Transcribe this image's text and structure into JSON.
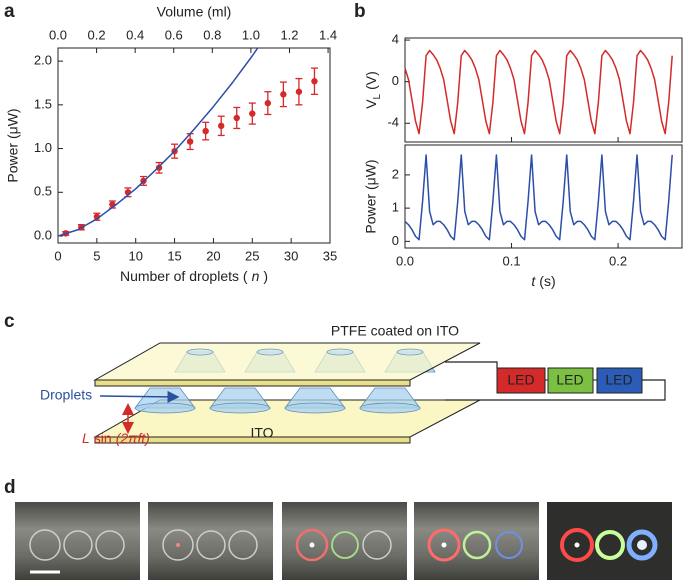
{
  "panel_labels": [
    "a",
    "b",
    "c",
    "d"
  ],
  "chart_data": [
    {
      "type": "scatter",
      "xlabel": [
        "Number of droplets (",
        "n",
        ")"
      ],
      "x2label": "Volume (ml)",
      "ylabel": "Power (μW)",
      "xlim": [
        0,
        35
      ],
      "xticks": [
        0,
        5,
        10,
        15,
        20,
        25,
        30,
        35
      ],
      "x2lim": [
        0,
        1.41
      ],
      "x2ticks": [
        {
          "value": 0,
          "label": "0.0"
        },
        0.2,
        0.4,
        0.6,
        0.8,
        {
          "value": 1,
          "label": "1.0"
        },
        1.2,
        1.4
      ],
      "ylim": [
        -0.08,
        2.15
      ],
      "yticks": [
        {
          "value": 0,
          "label": "0.0"
        },
        0.5,
        {
          "value": 1,
          "label": "1.0"
        },
        1.5,
        {
          "value": 2,
          "label": "2.0"
        }
      ],
      "series": [
        {
          "color": "#d42a2a",
          "x": [
            1,
            3,
            5,
            7,
            9,
            11,
            13,
            15,
            17,
            19,
            21,
            23,
            25,
            27,
            29,
            31,
            33
          ],
          "values": [
            0.03,
            0.1,
            0.22,
            0.36,
            0.5,
            0.63,
            0.78,
            0.97,
            1.08,
            1.2,
            1.26,
            1.35,
            1.4,
            1.52,
            1.62,
            1.65,
            1.77
          ],
          "errors": [
            0.02,
            0.03,
            0.04,
            0.04,
            0.05,
            0.05,
            0.06,
            0.08,
            0.09,
            0.1,
            0.11,
            0.12,
            0.12,
            0.13,
            0.14,
            0.15,
            0.15
          ]
        },
        {
          "type": "line",
          "color": "#2b4fa8",
          "x": [
            0,
            2.5,
            5,
            7.5,
            10,
            12.5,
            15,
            17.5,
            20,
            22.5,
            25,
            26
          ],
          "values": [
            0,
            0.07,
            0.195,
            0.36,
            0.54,
            0.75,
            0.97,
            1.22,
            1.48,
            1.76,
            2.06,
            2.19
          ]
        }
      ]
    },
    {
      "type": "line",
      "ylabel": [
        "V",
        "L",
        "(V)"
      ],
      "xlim": [
        0,
        0.26
      ],
      "xticks": [
        {
          "value": 0,
          "label": "0.0"
        },
        0.1,
        0.2
      ],
      "ylim": [
        -5.8,
        4.2
      ],
      "yticks": [
        -4,
        0,
        4
      ],
      "series": [
        {
          "color": "#d42a2a",
          "x": [
            0,
            0.0033,
            0.0066,
            0.0099,
            0.0132,
            0.0165,
            0.0198,
            0.0231,
            0.0264,
            0.0297,
            0.033,
            0.0363,
            0.0396,
            0.0429,
            0.0462,
            0.0495,
            0.0528,
            0.0561,
            0.0594,
            0.0627,
            0.066,
            0.0693,
            0.0726,
            0.0759,
            0.0792,
            0.0825,
            0.0858,
            0.0891,
            0.0924,
            0.0957,
            0.099,
            0.1023,
            0.1056,
            0.1089,
            0.1122,
            0.1155,
            0.1188,
            0.1221,
            0.1254,
            0.1287,
            0.132,
            0.1353,
            0.1386,
            0.1419,
            0.1452,
            0.1485,
            0.1518,
            0.1551,
            0.1584,
            0.1617,
            0.165,
            0.1683,
            0.1716,
            0.1749,
            0.1782,
            0.1815,
            0.1848,
            0.1881,
            0.1914,
            0.1947,
            0.198,
            0.2013,
            0.2046,
            0.2079,
            0.2112,
            0.2145,
            0.2178,
            0.2211,
            0.2244,
            0.2277,
            0.231,
            0.2343,
            0.2376,
            0.2409,
            0.2442,
            0.2475,
            0.2508
          ],
          "values": [
            1.3,
            0.2,
            -1.8,
            -3.8,
            -5.0,
            -2.0,
            2.5,
            3.0,
            2.6,
            2.1,
            1.3,
            0.2,
            -1.8,
            -3.8,
            -5.0,
            -2.0,
            2.5,
            3.0,
            2.6,
            2.1,
            1.3,
            0.2,
            -1.8,
            -3.8,
            -5.0,
            -2.0,
            2.5,
            3.0,
            2.6,
            2.1,
            1.3,
            0.2,
            -1.8,
            -3.8,
            -5.0,
            -2.0,
            2.5,
            3.0,
            2.6,
            2.1,
            1.3,
            0.2,
            -1.8,
            -3.8,
            -5.0,
            -2.0,
            2.5,
            3.0,
            2.6,
            2.1,
            1.3,
            0.2,
            -1.8,
            -3.8,
            -5.0,
            -2.0,
            2.5,
            3.0,
            2.6,
            2.1,
            1.3,
            0.2,
            -1.8,
            -3.8,
            -5.0,
            -2.0,
            2.5,
            3.0,
            2.6,
            2.1,
            1.3,
            0.2,
            -1.8,
            -3.8,
            -5.0,
            -2.0,
            2.5
          ]
        }
      ]
    },
    {
      "type": "line",
      "xlabel": [
        "t",
        "(s)"
      ],
      "ylabel": "Power (μW)",
      "xlim": [
        0,
        0.26
      ],
      "xticks": [
        {
          "value": 0,
          "label": "0.0"
        },
        0.1,
        0.2
      ],
      "ylim": [
        -0.2,
        2.9
      ],
      "yticks": [
        0,
        1,
        2
      ],
      "series": [
        {
          "color": "#2b4fa8",
          "x": [
            0,
            0.0033,
            0.0066,
            0.0099,
            0.0132,
            0.0165,
            0.0198,
            0.0231,
            0.0264,
            0.0297,
            0.033,
            0.0363,
            0.0396,
            0.0429,
            0.0462,
            0.0495,
            0.0528,
            0.0561,
            0.0594,
            0.0627,
            0.066,
            0.0693,
            0.0726,
            0.0759,
            0.0792,
            0.0825,
            0.0858,
            0.0891,
            0.0924,
            0.0957,
            0.099,
            0.1023,
            0.1056,
            0.1089,
            0.1122,
            0.1155,
            0.1188,
            0.1221,
            0.1254,
            0.1287,
            0.132,
            0.1353,
            0.1386,
            0.1419,
            0.1452,
            0.1485,
            0.1518,
            0.1551,
            0.1584,
            0.1617,
            0.165,
            0.1683,
            0.1716,
            0.1749,
            0.1782,
            0.1815,
            0.1848,
            0.1881,
            0.1914,
            0.1947,
            0.198,
            0.2013,
            0.2046,
            0.2079,
            0.2112,
            0.2145,
            0.2178,
            0.2211,
            0.2244,
            0.2277,
            0.231,
            0.2343,
            0.2376,
            0.2409,
            0.2442,
            0.2475,
            0.2508
          ],
          "values": [
            0.6,
            0.5,
            0.35,
            0.15,
            0.05,
            1.2,
            2.6,
            0.9,
            0.5,
            0.6,
            0.6,
            0.5,
            0.35,
            0.15,
            0.05,
            1.2,
            2.6,
            0.9,
            0.5,
            0.6,
            0.6,
            0.5,
            0.35,
            0.15,
            0.05,
            1.2,
            2.6,
            0.9,
            0.5,
            0.6,
            0.6,
            0.5,
            0.35,
            0.15,
            0.05,
            1.2,
            2.6,
            0.9,
            0.5,
            0.6,
            0.6,
            0.5,
            0.35,
            0.15,
            0.05,
            1.2,
            2.6,
            0.9,
            0.5,
            0.6,
            0.6,
            0.5,
            0.35,
            0.15,
            0.05,
            1.2,
            2.6,
            0.9,
            0.5,
            0.6,
            0.6,
            0.5,
            0.35,
            0.15,
            0.05,
            1.2,
            2.6,
            0.9,
            0.5,
            0.6,
            0.6,
            0.5,
            0.35,
            0.15,
            0.05,
            1.2,
            2.6
          ]
        }
      ]
    }
  ],
  "diagram": {
    "top_plate": "PTFE coated on ITO",
    "droplets": "Droplets",
    "bottom_plate": "ITO",
    "motion": [
      "L",
      "sin",
      "(2πft)"
    ],
    "leds": [
      "LED",
      "LED",
      "LED"
    ]
  }
}
